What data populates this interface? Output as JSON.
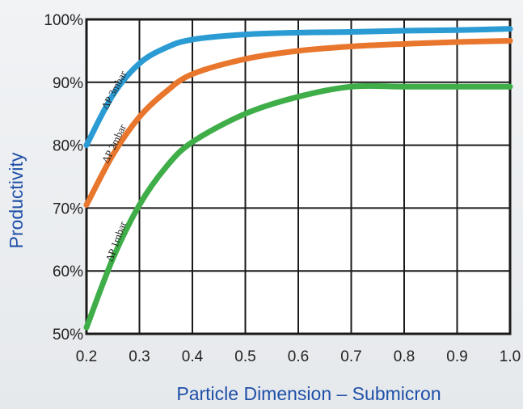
{
  "chart_data": {
    "type": "line",
    "title": "",
    "xlabel": "Particle Dimension – Submicron",
    "ylabel": "Productivity",
    "xlim": [
      0.2,
      1.0
    ],
    "ylim": [
      50,
      100
    ],
    "x_ticks": [
      "0.2",
      "0.3",
      "0.4",
      "0.5",
      "0.6",
      "0.7",
      "0.8",
      "0.9",
      "1.0"
    ],
    "y_ticks": [
      "50%",
      "60%",
      "70%",
      "80%",
      "90%",
      "100%"
    ],
    "grid": true,
    "series": [
      {
        "name": "ΔP 3mbar",
        "color": "#2b9bd3",
        "x": [
          0.2,
          0.25,
          0.3,
          0.35,
          0.4,
          0.5,
          0.6,
          0.7,
          0.8,
          0.9,
          1.0
        ],
        "y": [
          80,
          88,
          93,
          95.5,
          96.8,
          97.6,
          97.9,
          98.0,
          98.2,
          98.3,
          98.5
        ]
      },
      {
        "name": "ΔP 2mbar",
        "color": "#e8762c",
        "x": [
          0.2,
          0.25,
          0.3,
          0.35,
          0.4,
          0.5,
          0.6,
          0.7,
          0.8,
          0.9,
          1.0
        ],
        "y": [
          70.5,
          78.5,
          84.5,
          88.5,
          91.3,
          93.7,
          95.0,
          95.7,
          96.1,
          96.4,
          96.6
        ]
      },
      {
        "name": "ΔP 1mbar",
        "color": "#3fae49",
        "x": [
          0.2,
          0.25,
          0.3,
          0.35,
          0.4,
          0.5,
          0.6,
          0.7,
          0.8,
          0.9,
          1.0
        ],
        "y": [
          51,
          62,
          70.5,
          76.5,
          80.5,
          85,
          87.7,
          89.3,
          89.3,
          89.3,
          89.3
        ]
      }
    ]
  }
}
